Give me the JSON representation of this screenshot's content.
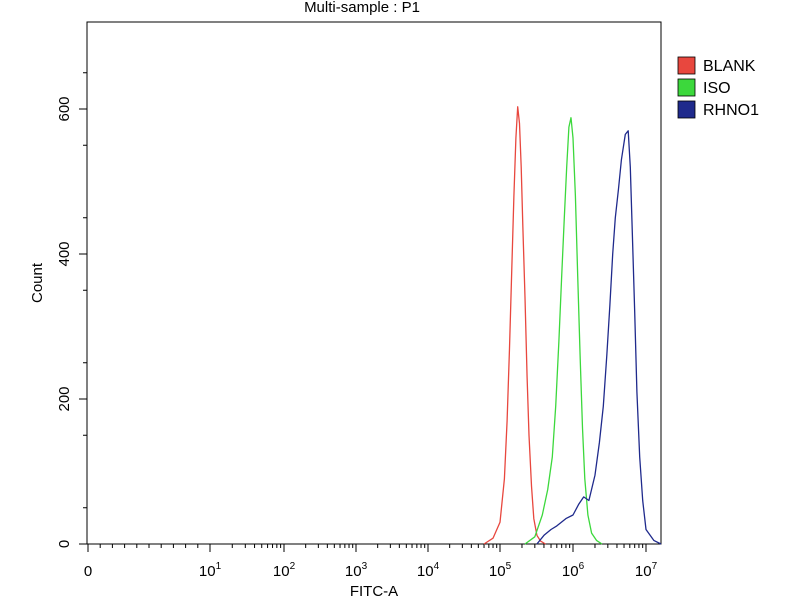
{
  "chart_data": {
    "type": "line",
    "title": "Multi-sample : P1",
    "xlabel": "FITC-A",
    "ylabel": "Count",
    "xscale": "log",
    "xlim": [
      0,
      12000000
    ],
    "ylim": [
      0,
      720
    ],
    "x_ticks": [
      {
        "base": "0",
        "exp": ""
      },
      {
        "base": "10",
        "exp": "1"
      },
      {
        "base": "10",
        "exp": "2"
      },
      {
        "base": "10",
        "exp": "3"
      },
      {
        "base": "10",
        "exp": "4"
      },
      {
        "base": "10",
        "exp": "5"
      },
      {
        "base": "10",
        "exp": "6"
      },
      {
        "base": "10",
        "exp": "7"
      }
    ],
    "y_ticks": [
      "0",
      "200",
      "400",
      "600"
    ],
    "y_tick_values": [
      0,
      200,
      400,
      600
    ],
    "grid": false,
    "legend_position": "right",
    "series": [
      {
        "name": "BLANK",
        "color": "#e8473e",
        "points": [
          [
            60000,
            0
          ],
          [
            80000,
            8
          ],
          [
            100000,
            30
          ],
          [
            115000,
            90
          ],
          [
            125000,
            170
          ],
          [
            135000,
            270
          ],
          [
            145000,
            380
          ],
          [
            155000,
            480
          ],
          [
            165000,
            560
          ],
          [
            175000,
            603
          ],
          [
            185000,
            580
          ],
          [
            195000,
            520
          ],
          [
            205000,
            440
          ],
          [
            220000,
            340
          ],
          [
            235000,
            230
          ],
          [
            250000,
            150
          ],
          [
            270000,
            80
          ],
          [
            290000,
            35
          ],
          [
            320000,
            12
          ],
          [
            360000,
            4
          ],
          [
            420000,
            0
          ]
        ]
      },
      {
        "name": "ISO",
        "color": "#3cd83c",
        "points": [
          [
            220000,
            0
          ],
          [
            300000,
            10
          ],
          [
            380000,
            40
          ],
          [
            450000,
            75
          ],
          [
            520000,
            120
          ],
          [
            580000,
            190
          ],
          [
            640000,
            280
          ],
          [
            700000,
            370
          ],
          [
            760000,
            450
          ],
          [
            820000,
            520
          ],
          [
            880000,
            575
          ],
          [
            940000,
            588
          ],
          [
            1000000,
            560
          ],
          [
            1080000,
            480
          ],
          [
            1160000,
            370
          ],
          [
            1250000,
            260
          ],
          [
            1350000,
            160
          ],
          [
            1450000,
            90
          ],
          [
            1600000,
            40
          ],
          [
            1800000,
            15
          ],
          [
            2100000,
            5
          ],
          [
            2500000,
            0
          ]
        ]
      },
      {
        "name": "RHNO1",
        "color": "#1f2a8c",
        "points": [
          [
            320000,
            0
          ],
          [
            400000,
            12
          ],
          [
            500000,
            20
          ],
          [
            600000,
            25
          ],
          [
            800000,
            35
          ],
          [
            1000000,
            40
          ],
          [
            1200000,
            55
          ],
          [
            1400000,
            65
          ],
          [
            1650000,
            60
          ],
          [
            2000000,
            95
          ],
          [
            2300000,
            140
          ],
          [
            2600000,
            190
          ],
          [
            2900000,
            260
          ],
          [
            3200000,
            330
          ],
          [
            3500000,
            400
          ],
          [
            3800000,
            450
          ],
          [
            4200000,
            490
          ],
          [
            4600000,
            530
          ],
          [
            5200000,
            565
          ],
          [
            5700000,
            570
          ],
          [
            6100000,
            520
          ],
          [
            6500000,
            430
          ],
          [
            7000000,
            320
          ],
          [
            7500000,
            210
          ],
          [
            8200000,
            120
          ],
          [
            9000000,
            60
          ],
          [
            10000000,
            20
          ],
          [
            11000000,
            5
          ],
          [
            12000000,
            0
          ]
        ]
      }
    ]
  }
}
